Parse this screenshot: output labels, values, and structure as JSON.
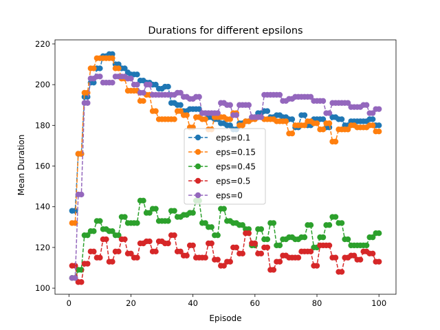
{
  "chart_data": {
    "type": "line",
    "title": "Durations for different epsilons",
    "xlabel": "Episode",
    "ylabel": "Mean Duration",
    "xlim": [
      -4.5,
      105.5
    ],
    "ylim": [
      97,
      222
    ],
    "xticks": [
      0,
      20,
      40,
      60,
      80,
      100
    ],
    "yticks": [
      100,
      120,
      140,
      160,
      180,
      200,
      220
    ],
    "grid": false,
    "legend_placement": "center",
    "x": [
      1,
      2,
      3,
      4,
      5,
      6,
      7,
      8,
      9,
      10,
      11,
      12,
      13,
      14,
      15,
      16,
      17,
      18,
      19,
      20,
      21,
      22,
      23,
      24,
      25,
      26,
      27,
      28,
      29,
      30,
      31,
      32,
      33,
      34,
      35,
      36,
      37,
      38,
      39,
      40,
      41,
      42,
      43,
      44,
      45,
      46,
      47,
      48,
      49,
      50,
      51,
      52,
      53,
      54,
      55,
      56,
      57,
      58,
      59,
      60,
      61,
      62,
      63,
      64,
      65,
      66,
      67,
      68,
      69,
      70,
      71,
      72,
      73,
      74,
      75,
      76,
      77,
      78,
      79,
      80,
      81,
      82,
      83,
      84,
      85,
      86,
      87,
      88,
      89,
      90,
      91,
      92,
      93,
      94,
      95,
      96,
      97,
      98,
      99,
      100
    ],
    "series": [
      {
        "name": "eps=0.1",
        "color": "#1f77b4",
        "style": "dashed",
        "marker": "circle",
        "values": [
          138,
          138,
          166,
          166,
          194,
          194,
          201,
          201,
          208,
          208,
          214,
          214,
          215,
          215,
          210,
          210,
          208,
          208,
          206,
          205,
          205,
          205,
          202,
          202,
          201,
          201,
          200,
          200,
          198,
          198,
          199,
          199,
          191,
          191,
          190,
          190,
          187,
          187,
          188,
          188,
          188,
          188,
          186,
          186,
          184,
          184,
          183,
          183,
          181,
          181,
          180,
          180,
          178,
          178,
          181,
          181,
          182,
          182,
          184,
          184,
          186,
          186,
          187,
          187,
          184,
          184,
          185,
          185,
          184,
          184,
          183,
          183,
          179,
          179,
          185,
          185,
          180,
          180,
          183,
          183,
          183,
          183,
          179,
          179,
          184,
          184,
          183,
          183,
          180,
          180,
          182,
          182,
          182,
          182,
          182,
          182,
          183,
          183,
          180,
          180
        ]
      },
      {
        "name": "eps=0.15",
        "color": "#ff7f0e",
        "style": "dashed",
        "marker": "circle",
        "values": [
          132,
          132,
          166,
          166,
          196,
          196,
          208,
          208,
          213,
          213,
          213,
          213,
          213,
          213,
          208,
          208,
          203,
          203,
          197,
          197,
          197,
          197,
          192,
          192,
          195,
          195,
          187,
          187,
          183,
          183,
          183,
          183,
          183,
          183,
          187,
          187,
          185,
          185,
          179,
          179,
          184,
          184,
          183,
          183,
          178,
          178,
          184,
          184,
          184,
          184,
          183,
          183,
          186,
          186,
          180,
          180,
          182,
          182,
          183,
          183,
          184,
          184,
          183,
          183,
          183,
          183,
          182,
          182,
          182,
          182,
          176,
          176,
          180,
          180,
          180,
          180,
          182,
          182,
          181,
          181,
          178,
          178,
          181,
          181,
          172,
          172,
          178,
          178,
          178,
          178,
          180,
          180,
          179,
          179,
          179,
          179,
          180,
          180,
          177,
          177
        ]
      },
      {
        "name": "eps=0.45",
        "color": "#2ca02c",
        "style": "dashed",
        "marker": "circle",
        "values": [
          105,
          105,
          109,
          109,
          126,
          126,
          128,
          128,
          133,
          133,
          129,
          129,
          128,
          128,
          126,
          126,
          135,
          135,
          132,
          132,
          132,
          132,
          143,
          143,
          137,
          137,
          139,
          139,
          133,
          133,
          133,
          133,
          138,
          138,
          135,
          135,
          136,
          136,
          137,
          137,
          143,
          143,
          132,
          132,
          130,
          130,
          126,
          126,
          139,
          139,
          133,
          133,
          132,
          132,
          131,
          131,
          129,
          129,
          121,
          121,
          129,
          129,
          124,
          124,
          132,
          132,
          121,
          121,
          124,
          124,
          125,
          125,
          124,
          124,
          125,
          125,
          131,
          131,
          120,
          120,
          125,
          125,
          131,
          131,
          135,
          135,
          132,
          132,
          124,
          124,
          121,
          121,
          121,
          121,
          121,
          121,
          125,
          125,
          127,
          127
        ]
      },
      {
        "name": "eps=0.5",
        "color": "#d62728",
        "style": "dashed",
        "marker": "circle",
        "values": [
          111,
          111,
          103,
          103,
          112,
          112,
          118,
          118,
          115,
          115,
          124,
          124,
          113,
          113,
          118,
          118,
          124,
          124,
          117,
          117,
          115,
          115,
          122,
          122,
          123,
          123,
          118,
          118,
          123,
          123,
          122,
          122,
          126,
          126,
          118,
          118,
          116,
          116,
          121,
          121,
          115,
          115,
          115,
          115,
          122,
          122,
          114,
          114,
          111,
          111,
          113,
          113,
          120,
          120,
          117,
          117,
          127,
          127,
          122,
          122,
          117,
          117,
          120,
          120,
          109,
          109,
          113,
          113,
          116,
          116,
          115,
          115,
          115,
          115,
          118,
          118,
          118,
          118,
          111,
          111,
          121,
          121,
          121,
          121,
          115,
          115,
          108,
          108,
          115,
          115,
          116,
          116,
          114,
          114,
          118,
          118,
          117,
          117,
          113,
          113
        ]
      },
      {
        "name": "eps=0",
        "color": "#9467bd",
        "style": "dashed",
        "marker": "circle",
        "values": [
          105,
          105,
          146,
          146,
          191,
          191,
          203,
          203,
          204,
          204,
          201,
          201,
          201,
          201,
          204,
          204,
          204,
          204,
          203,
          203,
          200,
          200,
          196,
          196,
          200,
          200,
          195,
          195,
          195,
          195,
          195,
          195,
          195,
          195,
          196,
          196,
          194,
          194,
          193,
          193,
          194,
          194,
          186,
          186,
          186,
          186,
          186,
          186,
          191,
          191,
          190,
          190,
          185,
          185,
          190,
          190,
          190,
          190,
          184,
          184,
          184,
          184,
          195,
          195,
          195,
          195,
          195,
          195,
          192,
          192,
          193,
          193,
          194,
          194,
          194,
          194,
          194,
          194,
          192,
          192,
          192,
          192,
          186,
          186,
          191,
          191,
          191,
          191,
          191,
          191,
          189,
          189,
          189,
          189,
          190,
          190,
          186,
          186,
          188,
          188
        ]
      }
    ]
  }
}
